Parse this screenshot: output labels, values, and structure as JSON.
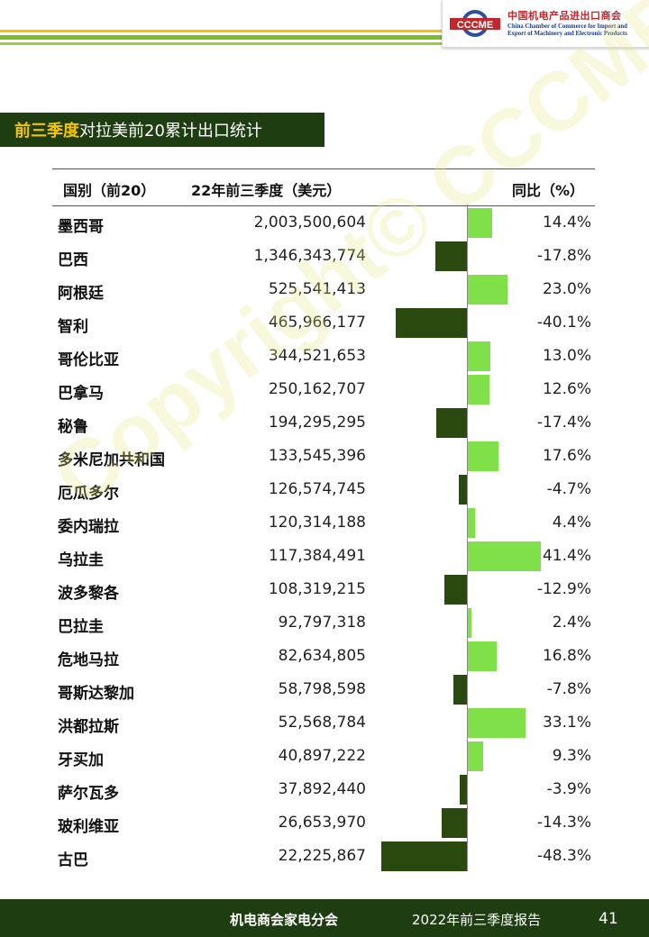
{
  "header": {
    "logo_text": "CCCME",
    "org_cn": "中国机电产品进出口商会",
    "org_en": "China Chamber of Commerce for Import and Export of Machinery and Electronic Products"
  },
  "section": {
    "title_highlight": "前三季度",
    "title_rest": "对拉美前20累计出口统计"
  },
  "table": {
    "headers": {
      "country": "国别（前20）",
      "value": "22年前三季度（美元）",
      "yoy": "同比（%）"
    },
    "rows": [
      {
        "country": "墨西哥",
        "value": "2,003,500,604",
        "yoy": "14.4%",
        "yoy_num": 14.4
      },
      {
        "country": "巴西",
        "value": "1,346,343,774",
        "yoy": "-17.8%",
        "yoy_num": -17.8
      },
      {
        "country": "阿根廷",
        "value": "525,541,413",
        "yoy": "23.0%",
        "yoy_num": 23.0
      },
      {
        "country": "智利",
        "value": "465,966,177",
        "yoy": "-40.1%",
        "yoy_num": -40.1
      },
      {
        "country": "哥伦比亚",
        "value": "344,521,653",
        "yoy": "13.0%",
        "yoy_num": 13.0
      },
      {
        "country": "巴拿马",
        "value": "250,162,707",
        "yoy": "12.6%",
        "yoy_num": 12.6
      },
      {
        "country": "秘鲁",
        "value": "194,295,295",
        "yoy": "-17.4%",
        "yoy_num": -17.4
      },
      {
        "country": "多米尼加共和国",
        "value": "133,545,396",
        "yoy": "17.6%",
        "yoy_num": 17.6
      },
      {
        "country": "厄瓜多尔",
        "value": "126,574,745",
        "yoy": "-4.7%",
        "yoy_num": -4.7
      },
      {
        "country": "委内瑞拉",
        "value": "120,314,188",
        "yoy": "4.4%",
        "yoy_num": 4.4
      },
      {
        "country": "乌拉圭",
        "value": "117,384,491",
        "yoy": "41.4%",
        "yoy_num": 41.4
      },
      {
        "country": "波多黎各",
        "value": "108,319,215",
        "yoy": "-12.9%",
        "yoy_num": -12.9
      },
      {
        "country": "巴拉圭",
        "value": "92,797,318",
        "yoy": "2.4%",
        "yoy_num": 2.4
      },
      {
        "country": "危地马拉",
        "value": "82,634,805",
        "yoy": "16.8%",
        "yoy_num": 16.8
      },
      {
        "country": "哥斯达黎加",
        "value": "58,798,598",
        "yoy": "-7.8%",
        "yoy_num": -7.8
      },
      {
        "country": "洪都拉斯",
        "value": "52,568,784",
        "yoy": "33.1%",
        "yoy_num": 33.1
      },
      {
        "country": "牙买加",
        "value": "40,897,222",
        "yoy": "9.3%",
        "yoy_num": 9.3
      },
      {
        "country": "萨尔瓦多",
        "value": "37,892,440",
        "yoy": "-3.9%",
        "yoy_num": -3.9
      },
      {
        "country": "玻利维亚",
        "value": "26,653,970",
        "yoy": "-14.3%",
        "yoy_num": -14.3
      },
      {
        "country": "古巴",
        "value": "22,225,867",
        "yoy": "-48.3%",
        "yoy_num": -48.3
      }
    ]
  },
  "colors": {
    "positive_bar": "#7fe04a",
    "negative_bar": "#2a4a10",
    "dark_green": "#1e3d10",
    "highlight": "#f5c400"
  },
  "watermark": "Copyright© CCCME",
  "footer": {
    "org": "机电商会家电分会",
    "report": "2022年前三季度报告",
    "page": "41"
  }
}
